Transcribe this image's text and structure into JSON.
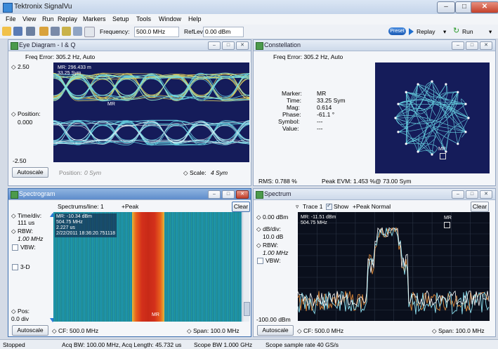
{
  "window": {
    "title": "Tektronix SignalVu",
    "min_label": "–",
    "max_label": "□",
    "close_label": "✕"
  },
  "menu": [
    "File",
    "View",
    "Run",
    "Replay",
    "Markers",
    "Setup",
    "Tools",
    "Window",
    "Help"
  ],
  "toolbar": {
    "frequency_label": "Frequency:",
    "frequency_value": "500.0 MHz",
    "reflev_label": "RefLev:",
    "reflev_value": "0.00 dBm",
    "preset_label": "Preset",
    "replay_label": "Replay",
    "run_label": "Run"
  },
  "eye": {
    "title": "Eye Diagram - I & Q",
    "freq_error": "Freq Error: 305.2 Hz, Auto",
    "y_top": "2.50",
    "y_bottom": "-2.50",
    "position_label": "Position:",
    "position_value": "0.000",
    "marker_readout": "MR: 296.433 m\n33.25 Sym",
    "marker_label": "MR",
    "autoscale": "Autoscale",
    "bottom_position_label": "Position:",
    "bottom_position_value": "0 Sym",
    "scale_label": "Scale:",
    "scale_value": "4 Sym"
  },
  "constellation": {
    "title": "Constellation",
    "freq_error": "Freq Error: 305.2 Hz, Auto",
    "marker_label": "Marker:",
    "marker_value": "MR",
    "time_label": "Time:",
    "time_value": "33.25 Sym",
    "mag_label": "Mag:",
    "mag_value": "0.614",
    "phase_label": "Phase:",
    "phase_value": "-61.1 °",
    "symbol_label": "Symbol:",
    "symbol_value": "---",
    "value_label": "Value:",
    "value_value": "---",
    "rms": "RMS: 0.788 %",
    "peak_evm": "Peak EVM:   1.453 %",
    "at_sym": "@  73.00 Sym",
    "marker_tag": "MR"
  },
  "spectrogram": {
    "title": "Spectrogram",
    "spectrums_per_line": "Spectrums/line: 1",
    "peak": "+Peak",
    "clear": "Clear",
    "time_div_label": "Time/div:",
    "time_div_value": "111 us",
    "rbw_label": "RBW:",
    "rbw_value": "1.00 MHz",
    "vbw_label": "VBW:",
    "threed_label": "3-D",
    "pos_label": "Pos:",
    "pos_value": "0.0 div",
    "marker_readout": "MR: -10.34 dBm\n504.75 MHz\n2.227 us\n2/22/2011 18:36:20.751118",
    "marker_tag": "MR",
    "autoscale": "Autoscale",
    "cf_label": "CF: 500.0 MHz",
    "span_label": "Span: 100.0 MHz"
  },
  "spectrum": {
    "title": "Spectrum",
    "trace_label": "Trace 1",
    "show_label": "Show",
    "detector_label": "+Peak Normal",
    "clear": "Clear",
    "ref_value": "0.00 dBm",
    "db_div_label": "dB/div:",
    "db_div_value": "10.0 dB",
    "rbw_label": "RBW:",
    "rbw_value": "1.00 MHz",
    "vbw_label": "VBW:",
    "bottom_value": "-100.00 dBm",
    "marker_readout": "MR: -11.51 dBm\n504.75 MHz",
    "marker_tag": "MR",
    "autoscale": "Autoscale",
    "cf_label": "CF: 500.0 MHz",
    "span_label": "Span: 100.0 MHz"
  },
  "status": {
    "state": "Stopped",
    "acq": "Acq BW: 100.00 MHz, Acq Length: 45.732 us",
    "scope_bw": "Scope BW 1.000 GHz",
    "scope_rate": "Scope sample rate 40 GS/s"
  }
}
